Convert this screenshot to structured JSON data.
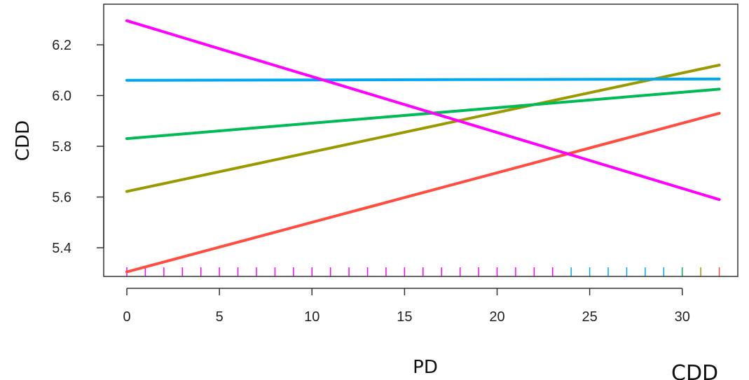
{
  "chart_data": {
    "type": "line",
    "xlabel": "PD",
    "ylabel": "CDD",
    "corner_label": "CDD",
    "xlim": [
      -1.25,
      33.0
    ],
    "ylim": [
      5.287,
      6.36
    ],
    "x_ticks": [
      0,
      5,
      10,
      15,
      20,
      25,
      30
    ],
    "x_tick_labels": [
      "0",
      "5",
      "10",
      "15",
      "20",
      "25",
      "30"
    ],
    "y_ticks": [
      5.4,
      5.6,
      5.8,
      6.0,
      6.2
    ],
    "y_tick_labels": [
      "5.4",
      "5.6",
      "5.8",
      "6.0",
      "6.2"
    ],
    "grid": false,
    "series": [
      {
        "color": "#FF4D40",
        "x": [
          0,
          32
        ],
        "y": [
          5.305,
          5.93
        ]
      },
      {
        "color": "#999900",
        "x": [
          0,
          32
        ],
        "y": [
          5.622,
          6.12
        ]
      },
      {
        "color": "#00BA55",
        "x": [
          0,
          32
        ],
        "y": [
          5.83,
          6.025
        ]
      },
      {
        "color": "#00A8F0",
        "x": [
          0,
          32
        ],
        "y": [
          6.06,
          6.065
        ]
      },
      {
        "color": "#FF00FF",
        "x": [
          0,
          32
        ],
        "y": [
          6.295,
          5.59
        ]
      }
    ],
    "rug": [
      {
        "color": "#FF00FF",
        "x": [
          0,
          1,
          2,
          3,
          4,
          5,
          6,
          7,
          8,
          9,
          10,
          11,
          12,
          13,
          14,
          15,
          16,
          17,
          18,
          19,
          20,
          21,
          22,
          23
        ]
      },
      {
        "color": "#00A8F0",
        "x": [
          24,
          25,
          26,
          27,
          28,
          29
        ]
      },
      {
        "color": "#00BA55",
        "x": [
          30
        ]
      },
      {
        "color": "#999900",
        "x": [
          31
        ]
      },
      {
        "color": "#FF4D40",
        "x": [
          32
        ]
      }
    ]
  }
}
